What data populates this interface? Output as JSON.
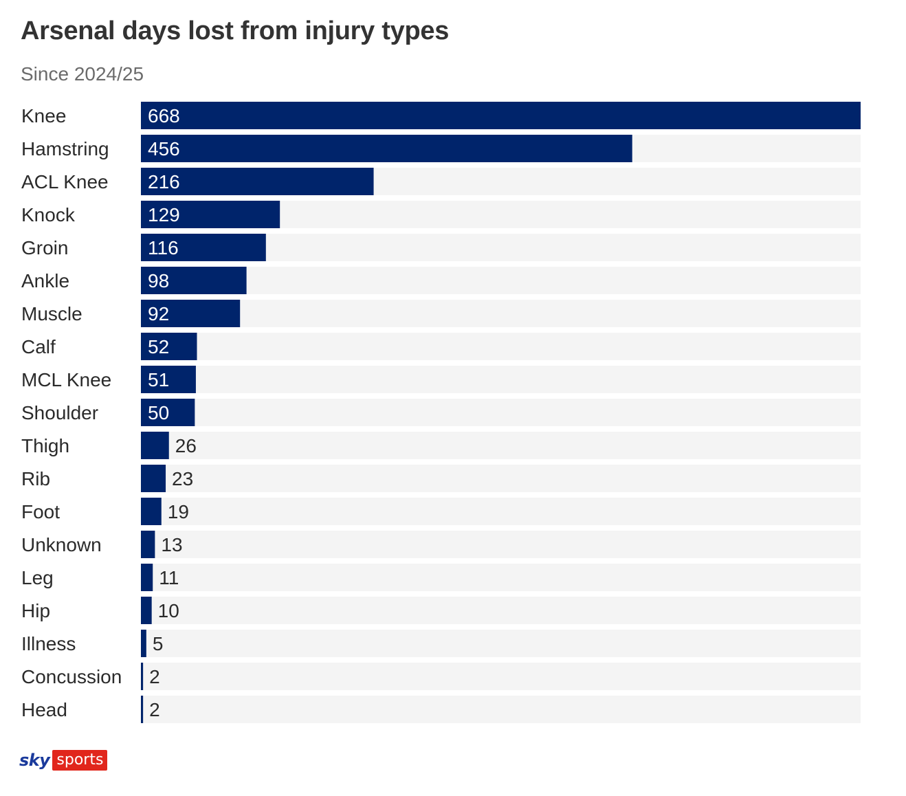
{
  "chart_data": {
    "type": "bar",
    "orientation": "horizontal",
    "title": "Arsenal days lost from injury types",
    "subtitle": "Since 2024/25",
    "categories": [
      "Knee",
      "Hamstring",
      "ACL Knee",
      "Knock",
      "Groin",
      "Ankle",
      "Muscle",
      "Calf",
      "MCL Knee",
      "Shoulder",
      "Thigh",
      "Rib",
      "Foot",
      "Unknown",
      "Leg",
      "Hip",
      "Illness",
      "Concussion",
      "Head"
    ],
    "values": [
      668,
      456,
      216,
      129,
      116,
      98,
      92,
      52,
      51,
      50,
      26,
      23,
      19,
      13,
      11,
      10,
      5,
      2,
      2
    ],
    "xlim": [
      0,
      668
    ],
    "bar_color": "#00246b",
    "track_color": "#f4f4f4",
    "grid": false,
    "legend": "none"
  },
  "branding": {
    "sky": "sky",
    "sports": "sports"
  }
}
